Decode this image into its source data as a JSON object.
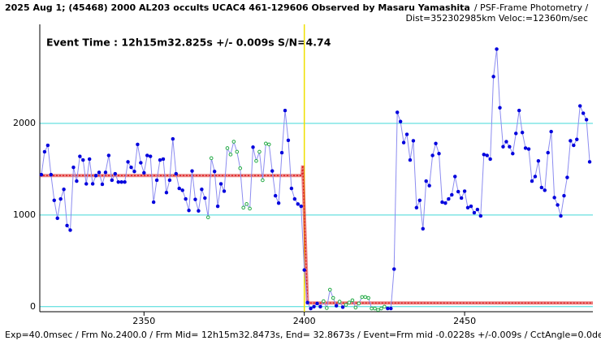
{
  "chart_data": {
    "type": "line",
    "title": "2025 Aug 1; (45468) 2000 AL203 occults UCAC4 461-129606 Observed by Masaru Yamashita",
    "title_suffix": "/ PSF-Frame Photometry /",
    "subtitle": "Dist=352302985km Veloc:=12360m/sec",
    "annotation": "Event Time : 12h15m32.825s  +/- 0.009s  S/N=4.74",
    "footer": "Exp=40.0msec / Frm No.2400.0 / Frm Mid= 12h15m32.8473s,  End= 32.8673s / Event=Frm mid -0.0228s +/-0.009s / CctAngle=0.0deg",
    "x": [
      2318,
      2319,
      2320,
      2321,
      2322,
      2323,
      2324,
      2325,
      2326,
      2327,
      2328,
      2329,
      2330,
      2331,
      2332,
      2333,
      2334,
      2335,
      2336,
      2337,
      2338,
      2339,
      2340,
      2341,
      2342,
      2343,
      2344,
      2345,
      2346,
      2347,
      2348,
      2349,
      2350,
      2351,
      2352,
      2353,
      2354,
      2355,
      2356,
      2357,
      2358,
      2359,
      2360,
      2361,
      2362,
      2363,
      2364,
      2365,
      2366,
      2367,
      2368,
      2369,
      2370,
      2371,
      2372,
      2373,
      2374,
      2375,
      2376,
      2377,
      2378,
      2379,
      2380,
      2381,
      2382,
      2383,
      2384,
      2385,
      2386,
      2387,
      2388,
      2389,
      2390,
      2391,
      2392,
      2393,
      2394,
      2395,
      2396,
      2397,
      2398,
      2399,
      2400,
      2401,
      2402,
      2403,
      2404,
      2405,
      2406,
      2407,
      2408,
      2409,
      2410,
      2411,
      2412,
      2413,
      2414,
      2415,
      2416,
      2417,
      2418,
      2419,
      2420,
      2421,
      2422,
      2423,
      2424,
      2425,
      2426,
      2427,
      2428,
      2429,
      2430,
      2431,
      2432,
      2433,
      2434,
      2435,
      2436,
      2437,
      2438,
      2439,
      2440,
      2441,
      2442,
      2443,
      2444,
      2445,
      2446,
      2447,
      2448,
      2449,
      2450,
      2451,
      2452,
      2453,
      2454,
      2455,
      2456,
      2457,
      2458,
      2459,
      2460,
      2461,
      2462,
      2463,
      2464,
      2465,
      2466,
      2467,
      2468,
      2469,
      2470,
      2471,
      2472,
      2473,
      2474,
      2475,
      2476,
      2477,
      2478,
      2479,
      2480,
      2481,
      2482,
      2483,
      2484,
      2485,
      2486,
      2487,
      2488,
      2489
    ],
    "series": [
      {
        "color": "#0000dd",
        "line_color": "#8c8cf0",
        "values": [
          1440,
          1690,
          1760,
          1440,
          1160,
          965,
          1175,
          1280,
          885,
          835,
          1520,
          1370,
          1640,
          1600,
          1340,
          1610,
          1340,
          1430,
          1465,
          1335,
          1465,
          1650,
          1380,
          1450,
          1360,
          1360,
          1360,
          1580,
          1520,
          1475,
          1770,
          1570,
          1460,
          1650,
          1640,
          1140,
          1380,
          1600,
          1610,
          1245,
          1380,
          1830,
          1450,
          1290,
          1270,
          1175,
          1050,
          1480,
          1170,
          1045,
          1280,
          1185,
          975,
          1620,
          1475,
          1095,
          1340,
          1260,
          1730,
          1660,
          1800,
          1690,
          1510,
          1080,
          1120,
          1070,
          1740,
          1590,
          1690,
          1380,
          1780,
          1770,
          1480,
          1210,
          1130,
          1680,
          2140,
          1815,
          1290,
          1175,
          1120,
          1095,
          400,
          45,
          -20,
          0,
          35,
          0,
          60,
          -15,
          185,
          95,
          10,
          55,
          -5,
          20,
          45,
          70,
          -10,
          35,
          105,
          105,
          95,
          -20,
          -20,
          -35,
          -20,
          0,
          -20,
          -20,
          410,
          2120,
          2020,
          1790,
          1880,
          1600,
          1810,
          1080,
          1160,
          850,
          1370,
          1320,
          1650,
          1780,
          1670,
          1140,
          1130,
          1175,
          1220,
          1420,
          1255,
          1185,
          1260,
          1080,
          1095,
          1025,
          1060,
          990,
          1660,
          1650,
          1610,
          2510,
          2810,
          2170,
          1745,
          1800,
          1745,
          1670,
          1890,
          2140,
          1900,
          1730,
          1720,
          1370,
          1420,
          1590,
          1300,
          1270,
          1680,
          1910,
          1190,
          1110,
          990,
          1210,
          1410,
          1810,
          1760,
          1825,
          2190,
          2110,
          2040,
          1580
        ]
      }
    ],
    "highlight_color": "#22aa44",
    "highlight_x": [
      2370,
      2371,
      2376,
      2377,
      2378,
      2379,
      2380,
      2381,
      2382,
      2383,
      2385,
      2386,
      2387,
      2388,
      2389,
      2406,
      2407,
      2408,
      2409,
      2411,
      2413,
      2414,
      2415,
      2416,
      2417,
      2418,
      2419,
      2420,
      2421,
      2422,
      2423,
      2424,
      2425
    ],
    "model": {
      "color": "#dd2020",
      "x": [
        2317.5,
        2399.3,
        2399.5,
        2401,
        2490
      ],
      "values": [
        1430,
        1430,
        1540,
        40,
        40
      ]
    },
    "event_x": 2400,
    "event_color": "#f0e000",
    "xlim": [
      2317.5,
      2490
    ],
    "ylim": [
      -55,
      3080
    ],
    "xticks": [
      2350,
      2400,
      2450
    ],
    "yticks": [
      0,
      1000,
      2000
    ],
    "grid": true,
    "grid_color": "#40d8d8"
  }
}
